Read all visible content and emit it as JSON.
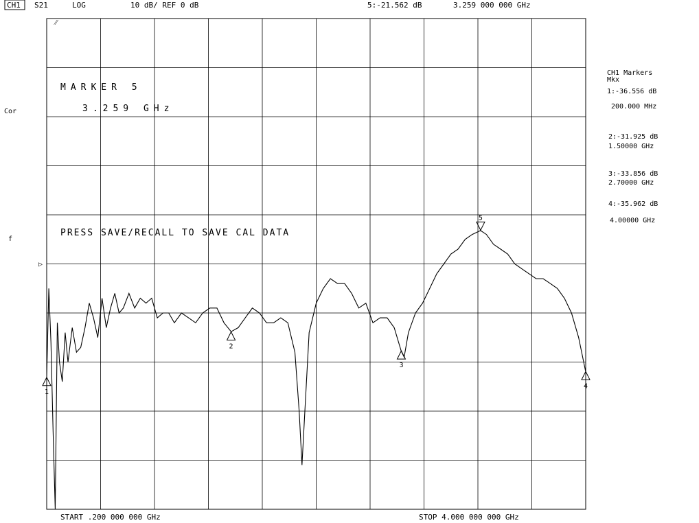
{
  "header": {
    "channel": "CH1",
    "parameter": "S21",
    "format": "LOG",
    "scale": "10 dB/ REF 0 dB",
    "active_marker_readout": "5:-21.562 dB",
    "active_marker_freq": "3.259 000 000 GHz"
  },
  "left_labels": {
    "cor": "Cor",
    "flag": "f",
    "ref_pointer": "▷"
  },
  "screen": {
    "corner_mark": "⁄⁄",
    "marker_title": "MARKER 5",
    "marker_value": "3.259 GHz",
    "message": "PRESS SAVE/RECALL TO SAVE CAL DATA"
  },
  "footer": {
    "start": "START .200 000 000 GHz",
    "stop": "STOP 4.000 000 000 GHz"
  },
  "marker_list": {
    "title": "CH1 Markers",
    "subtitle": "Mkx",
    "items": [
      {
        "value": "1:-36.556 dB",
        "freq": "200.000 MHz"
      },
      {
        "value": "2:-31.925 dB",
        "freq": "1.50000 GHz"
      },
      {
        "value": "3:-33.856 dB",
        "freq": "2.70000 GHz"
      },
      {
        "value": "4:-35.962 dB",
        "freq": "4.00000 GHz"
      }
    ]
  },
  "chart_data": {
    "type": "line",
    "x_unit": "GHz",
    "y_unit": "dB",
    "xlim": [
      0.2,
      4.0
    ],
    "ylim": [
      -50,
      0
    ],
    "grid": true,
    "x_divisions": 10,
    "y_divisions": 10,
    "trace": {
      "x": [
        0.2,
        0.215,
        0.23,
        0.245,
        0.26,
        0.275,
        0.29,
        0.31,
        0.33,
        0.35,
        0.38,
        0.41,
        0.44,
        0.47,
        0.5,
        0.53,
        0.56,
        0.59,
        0.62,
        0.65,
        0.68,
        0.71,
        0.74,
        0.78,
        0.82,
        0.86,
        0.9,
        0.94,
        0.98,
        1.02,
        1.06,
        1.1,
        1.15,
        1.2,
        1.25,
        1.3,
        1.35,
        1.4,
        1.45,
        1.5,
        1.55,
        1.6,
        1.65,
        1.7,
        1.75,
        1.8,
        1.85,
        1.9,
        1.95,
        1.98,
        2.0,
        2.02,
        2.05,
        2.1,
        2.15,
        2.2,
        2.25,
        2.3,
        2.35,
        2.4,
        2.45,
        2.5,
        2.55,
        2.6,
        2.65,
        2.7,
        2.72,
        2.75,
        2.8,
        2.85,
        2.9,
        2.95,
        3.0,
        3.05,
        3.1,
        3.15,
        3.2,
        3.259,
        3.3,
        3.35,
        3.4,
        3.45,
        3.5,
        3.55,
        3.6,
        3.65,
        3.7,
        3.75,
        3.8,
        3.85,
        3.9,
        3.95,
        4.0
      ],
      "y": [
        -36.6,
        -27.5,
        -33.0,
        -42.0,
        -50.0,
        -31.0,
        -35.0,
        -37.0,
        -32.0,
        -35.0,
        -31.5,
        -34.0,
        -33.5,
        -31.5,
        -29.0,
        -30.5,
        -32.5,
        -28.5,
        -31.5,
        -29.5,
        -28.0,
        -30.0,
        -29.5,
        -28.0,
        -29.5,
        -28.5,
        -29.0,
        -28.5,
        -30.5,
        -30.0,
        -30.0,
        -31.0,
        -30.0,
        -30.5,
        -31.0,
        -30.0,
        -29.5,
        -29.5,
        -31.0,
        -31.9,
        -31.5,
        -30.5,
        -29.5,
        -30.0,
        -31.0,
        -31.0,
        -30.5,
        -31.0,
        -34.0,
        -40.0,
        -45.5,
        -40.0,
        -32.0,
        -29.0,
        -27.5,
        -26.5,
        -27.0,
        -27.0,
        -28.0,
        -29.5,
        -29.0,
        -31.0,
        -30.5,
        -30.5,
        -31.5,
        -33.9,
        -34.5,
        -32.0,
        -30.0,
        -29.0,
        -27.5,
        -26.0,
        -25.0,
        -24.0,
        -23.5,
        -22.5,
        -22.0,
        -21.6,
        -22.0,
        -23.0,
        -23.5,
        -24.0,
        -25.0,
        -25.5,
        -26.0,
        -26.5,
        -26.5,
        -27.0,
        -27.5,
        -28.5,
        -30.0,
        -32.5,
        -36.0
      ]
    },
    "markers": [
      {
        "label": "1",
        "x": 0.2,
        "y": -36.556,
        "style": "up"
      },
      {
        "label": "2",
        "x": 1.5,
        "y": -31.925,
        "style": "up"
      },
      {
        "label": "3",
        "x": 2.7,
        "y": -33.856,
        "style": "up"
      },
      {
        "label": "4",
        "x": 4.0,
        "y": -35.962,
        "style": "up"
      },
      {
        "label": "5",
        "x": 3.259,
        "y": -21.562,
        "style": "down"
      }
    ]
  }
}
